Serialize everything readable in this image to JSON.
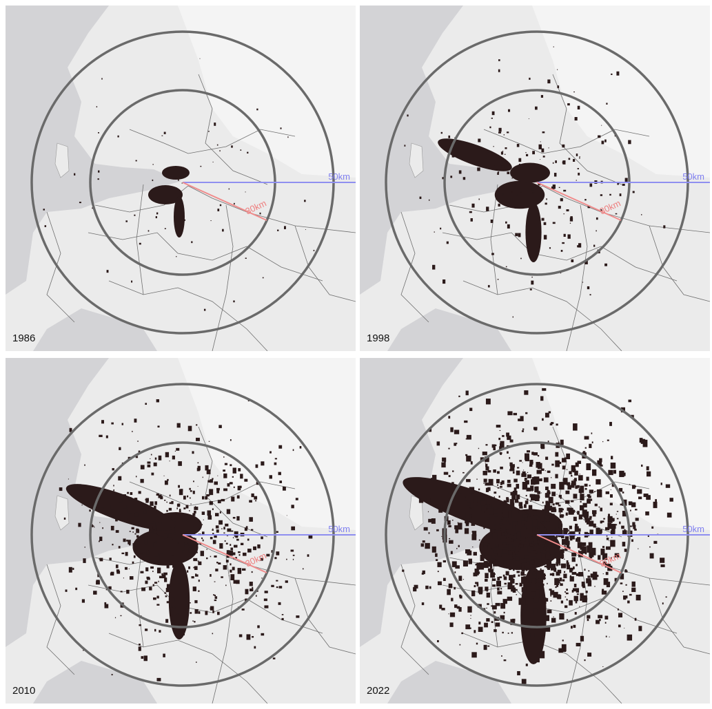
{
  "panels": [
    {
      "year": "1986",
      "radius_labels": [
        "50km",
        "30km"
      ]
    },
    {
      "year": "1998",
      "radius_labels": [
        "50km",
        "30km"
      ]
    },
    {
      "year": "2010",
      "radius_labels": [
        "50km",
        "30km"
      ]
    },
    {
      "year": "2022",
      "radius_labels": [
        "50km",
        "30km"
      ]
    }
  ]
}
